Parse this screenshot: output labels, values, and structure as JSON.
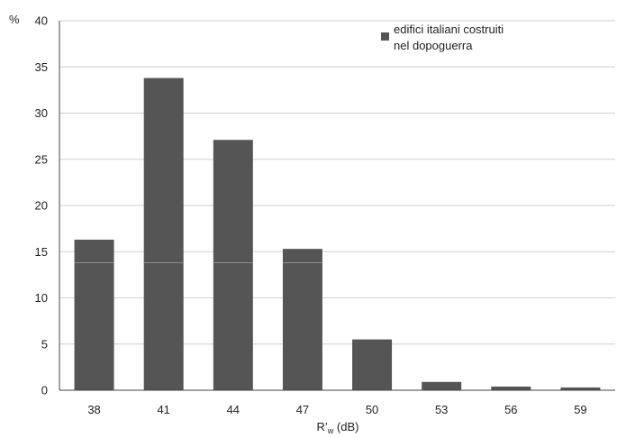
{
  "chart_data": {
    "type": "bar",
    "categories": [
      "38",
      "41",
      "44",
      "47",
      "50",
      "53",
      "56",
      "59"
    ],
    "series": [
      {
        "name": "edifici italiani costruiti nel dopoguerra",
        "values": [
          16.3,
          33.8,
          27.1,
          15.3,
          5.5,
          0.9,
          0.4,
          0.3
        ]
      }
    ],
    "title": "",
    "ylabel": "%",
    "xlabel": "R'w (dB)",
    "xlabel_main": "R’",
    "xlabel_sub": "w",
    "xlabel_unit": " (dB)",
    "ylim": [
      0,
      40
    ],
    "yticks": [
      0,
      5,
      10,
      15,
      20,
      25,
      30,
      35,
      40
    ],
    "grid": true,
    "legend_position": "top-right",
    "legend_lines": [
      "edifici italiani costruiti",
      "nel dopoguerra"
    ],
    "colors": {
      "bar": "#555555",
      "grid": "#cfcfcf",
      "axis": "#444444",
      "text": "#222222"
    }
  }
}
